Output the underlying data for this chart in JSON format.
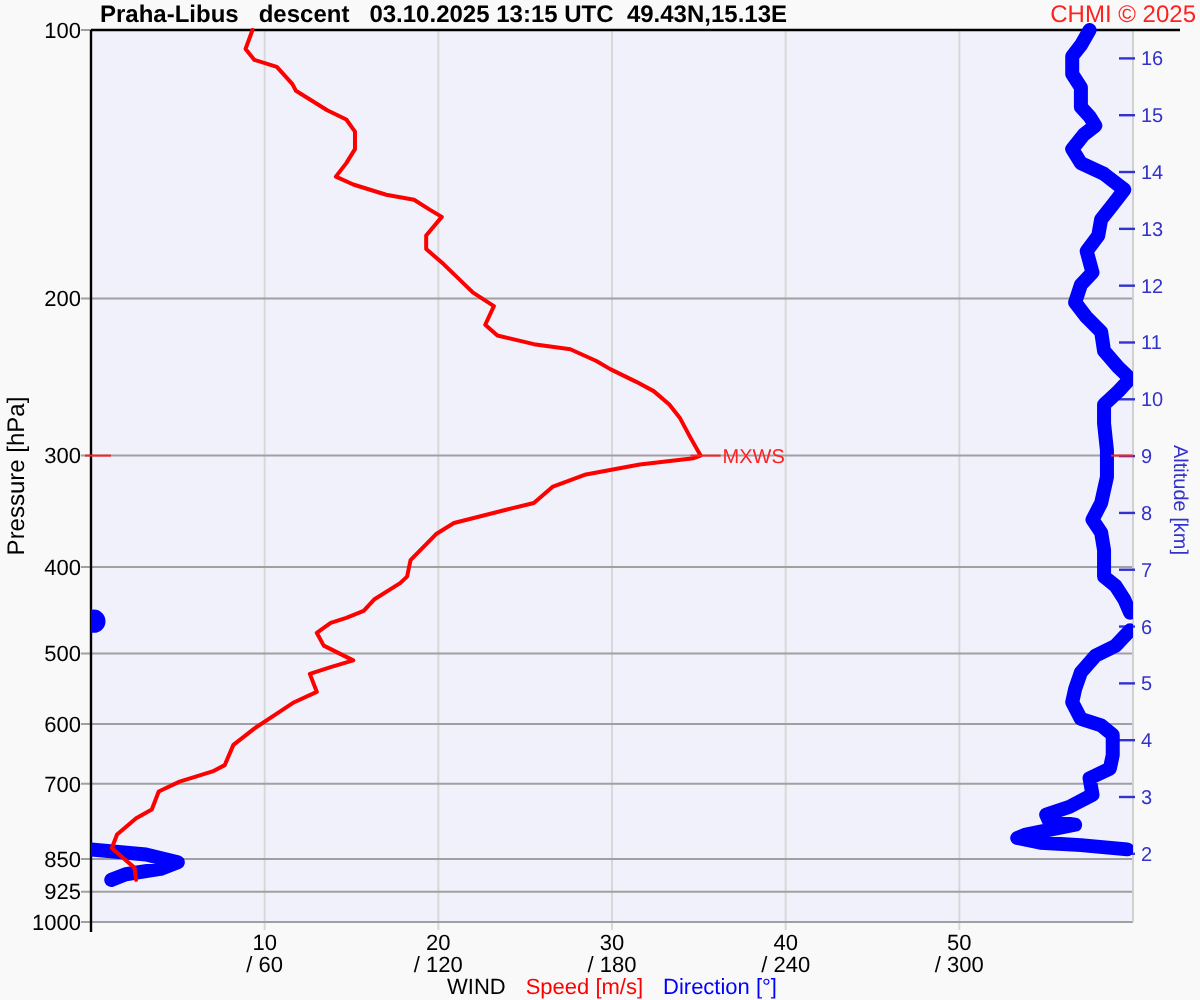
{
  "chart_data": {
    "type": "line",
    "orientation": "horizontal",
    "title": "Praha-Libus   descent   03.10.2025 13:15 UTC  49.43N,15.13E",
    "xlabel": "WIND",
    "ylabel": "Pressure [hPa]",
    "y2label": "Altitude [km]",
    "annotations": [
      "CHMI © 2025",
      {
        "text": "MXWS",
        "x": 35.1,
        "y": 300
      }
    ],
    "xlim": [
      0,
      60
    ],
    "xticks": [
      10,
      20,
      30,
      40,
      50
    ],
    "x2lim": [
      0,
      360
    ],
    "x2ticks": [
      {
        "value": 60,
        "label": "/ 60"
      },
      {
        "value": 120,
        "label": "/ 120"
      },
      {
        "value": 180,
        "label": "/ 180"
      },
      {
        "value": 240,
        "label": "/ 240"
      },
      {
        "value": 300,
        "label": "/ 300"
      }
    ],
    "ylim": [
      1000,
      100
    ],
    "yticks": [
      100,
      200,
      300,
      400,
      500,
      600,
      700,
      850,
      925,
      1000
    ],
    "y2lim": [
      0.8,
      16.5
    ],
    "y2ticks": [
      2,
      3,
      4,
      5,
      6,
      7,
      8,
      9,
      10,
      11,
      12,
      13,
      14,
      15,
      16
    ],
    "log": "y",
    "grid": true,
    "legend": "bottom",
    "series": [
      {
        "name": "Speed [m/s]",
        "color": "#ff0000",
        "values": [
          9.3,
          8.9,
          9.4,
          10.7,
          11.6,
          11.8,
          13.6,
          14.7,
          15.2,
          15.2,
          14.7,
          14.1,
          15.1,
          17.0,
          18.6,
          19.5,
          20.2,
          19.3,
          19.3,
          20.3,
          22.0,
          23.2,
          22.7,
          23.4,
          25.5,
          27.6,
          29.1,
          29.9,
          31.4,
          32.4,
          33.3,
          33.9,
          34.5,
          35.1,
          34.7,
          31.6,
          28.5,
          26.6,
          25.5,
          23.9,
          20.9,
          19.9,
          18.4,
          18.2,
          17.8,
          16.3,
          15.7,
          14.7,
          13.8,
          13.0,
          13.4,
          15.1,
          13.8,
          12.6,
          13.0,
          11.7,
          10.7,
          9.4,
          8.2,
          7.7,
          7.0,
          5.1,
          3.9,
          3.5,
          2.6,
          1.5,
          1.2,
          1.8,
          2.5,
          2.6
        ],
        "x": [
          100,
          105,
          108,
          110,
          115,
          117,
          123,
          126,
          130,
          136,
          141,
          146,
          149,
          153,
          155,
          159,
          162,
          170,
          176,
          183,
          197,
          204,
          214,
          220,
          225,
          228,
          235,
          240,
          248,
          254,
          263,
          272,
          286,
          300,
          302,
          307,
          315,
          325,
          339,
          345,
          357,
          367,
          393,
          410,
          417,
          435,
          448,
          456,
          462,
          474,
          490,
          509,
          518,
          527,
          552,
          567,
          584,
          607,
          633,
          667,
          678,
          696,
          714,
          748,
          765,
          798,
          826,
          846,
          869,
          897
        ]
      },
      {
        "name": "Direction [°]",
        "color": "#0000ff",
        "axis": "x2",
        "values": [
          345,
          342,
          339,
          339,
          342,
          342,
          345,
          347,
          343,
          339,
          342,
          350,
          357,
          353,
          349,
          348,
          344,
          346,
          342,
          340,
          344,
          349,
          350,
          355,
          359,
          355,
          350,
          350,
          351,
          351,
          349,
          346,
          349,
          350,
          350,
          354,
          357,
          359,
          null,
          359,
          354,
          347,
          342,
          340,
          339,
          342,
          349,
          353,
          353,
          352,
          345,
          346,
          338,
          330,
          331,
          340,
          334,
          323,
          320,
          328,
          342,
          358,
          null,
          0,
          19,
          30,
          24,
          12,
          7
        ],
        "x": [
          100,
          104,
          107,
          112,
          116,
          122,
          125,
          128,
          131,
          136,
          141,
          145,
          151,
          157,
          163,
          170,
          177,
          187,
          193,
          202,
          210,
          218,
          229,
          239,
          246,
          254,
          263,
          276,
          296,
          317,
          339,
          354,
          366,
          383,
          410,
          420,
          435,
          450,
          null,
          471,
          490,
          503,
          525,
          548,
          567,
          592,
          602,
          617,
          650,
          673,
          690,
          720,
          743,
          758,
          771,
          778,
          785,
          798,
          805,
          815,
          820,
          829,
          null,
          829,
          840,
          857,
          872,
          884,
          897
        ]
      },
      {
        "type": "scatter",
        "color": "#0000ff",
        "axis": "x2",
        "marker": "circle",
        "values": [
          1
        ],
        "x": [
          460
        ]
      }
    ]
  }
}
